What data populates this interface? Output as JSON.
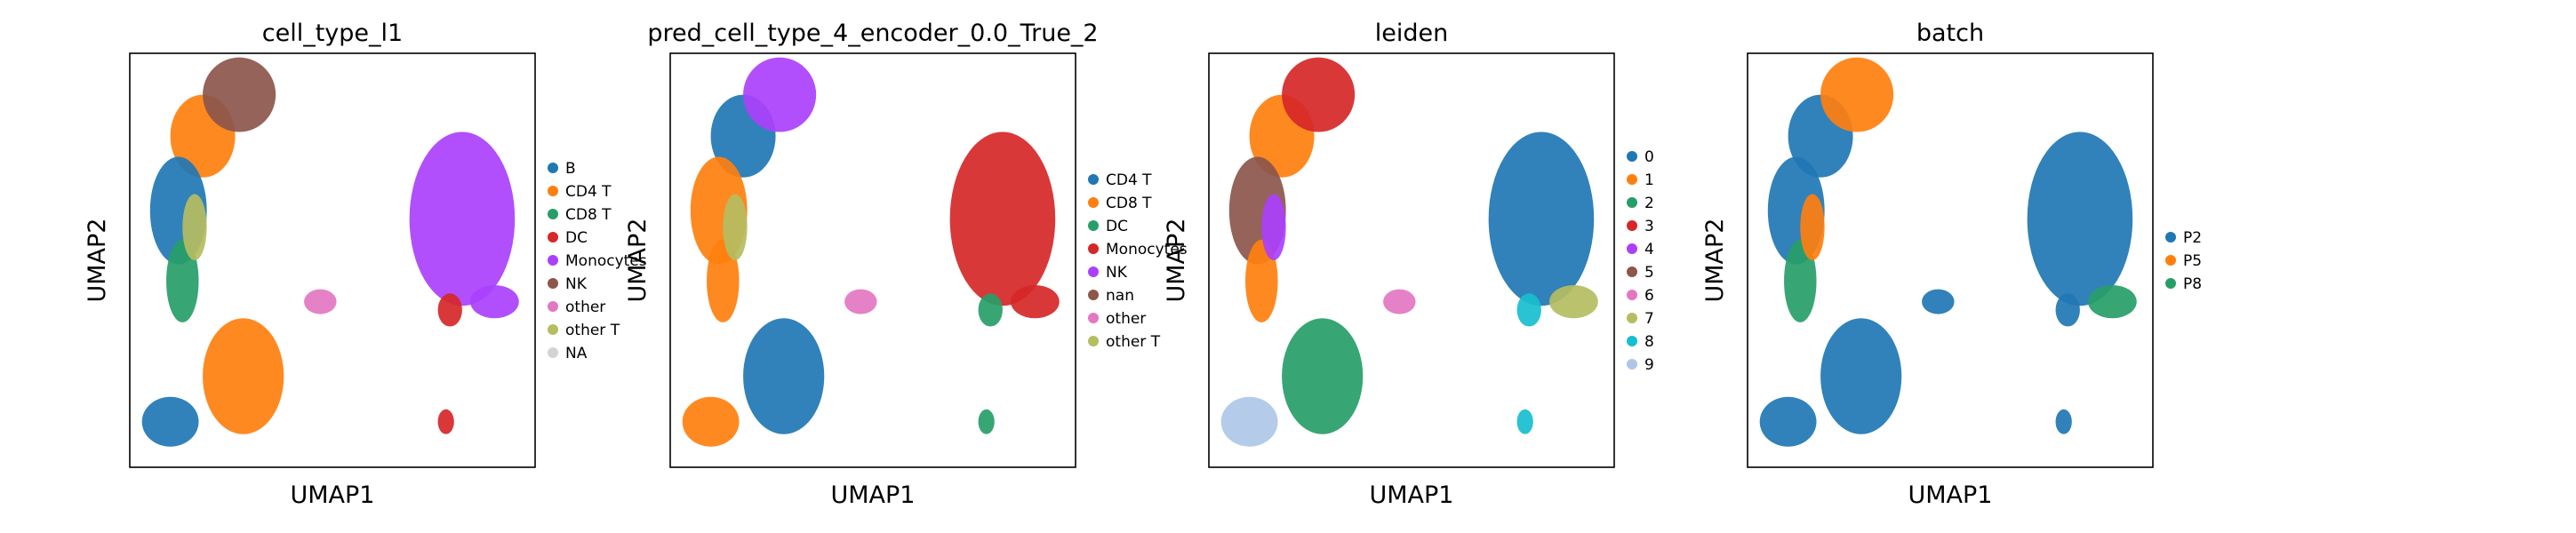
{
  "chart_data": [
    {
      "type": "scatter",
      "title": "cell_type_l1",
      "xlabel": "UMAP1",
      "ylabel": "UMAP2",
      "legend_position": "right",
      "categories": [
        "B",
        "CD4 T",
        "CD8 T",
        "DC",
        "Monocytes",
        "NK",
        "other",
        "other T",
        "NA"
      ],
      "colors": [
        "#1f77b4",
        "#ff7f0e",
        "#279e68",
        "#d62728",
        "#aa40fc",
        "#8c564b",
        "#e377c2",
        "#b5bd61",
        "#d3d3d3"
      ],
      "cluster_labels": [
        "CD4 T",
        "B",
        "NK",
        "CD8 T",
        "other T",
        "Monocytes",
        "CD4 T",
        "Monocytes",
        "other",
        "B",
        "DC",
        "DC"
      ]
    },
    {
      "type": "scatter",
      "title": "pred_cell_type_4_encoder_0.0_True_2",
      "xlabel": "UMAP1",
      "ylabel": "UMAP2",
      "legend_position": "right",
      "categories": [
        "CD4 T",
        "CD8 T",
        "DC",
        "Monocytes",
        "NK",
        "nan",
        "other",
        "other T"
      ],
      "colors": [
        "#1f77b4",
        "#ff7f0e",
        "#279e68",
        "#d62728",
        "#aa40fc",
        "#8c564b",
        "#e377c2",
        "#b5bd61"
      ],
      "cluster_labels": [
        "CD4 T",
        "CD8 T",
        "NK",
        "CD8 T",
        "other T",
        "Monocytes",
        "CD4 T",
        "Monocytes",
        "other",
        "CD8 T",
        "DC",
        "DC"
      ]
    },
    {
      "type": "scatter",
      "title": "leiden",
      "xlabel": "UMAP1",
      "ylabel": "UMAP2",
      "legend_position": "right",
      "categories": [
        "0",
        "1",
        "2",
        "3",
        "4",
        "5",
        "6",
        "7",
        "8",
        "9"
      ],
      "colors": [
        "#1f77b4",
        "#ff7f0e",
        "#279e68",
        "#d62728",
        "#aa40fc",
        "#8c564b",
        "#e377c2",
        "#b5bd61",
        "#17becf",
        "#aec7e8"
      ],
      "cluster_labels": [
        "1",
        "5",
        "3",
        "1",
        "4",
        "0",
        "2",
        "7",
        "6",
        "9",
        "8",
        "8"
      ]
    },
    {
      "type": "scatter",
      "title": "batch",
      "xlabel": "UMAP1",
      "ylabel": "UMAP2",
      "legend_position": "right",
      "categories": [
        "P2",
        "P5",
        "P8"
      ],
      "colors": [
        "#1f77b4",
        "#ff7f0e",
        "#279e68"
      ],
      "cluster_labels": [
        "P2",
        "P2",
        "P5",
        "P8",
        "P5",
        "P2",
        "P2",
        "P8",
        "P2",
        "P2",
        "P2",
        "P2"
      ]
    }
  ]
}
